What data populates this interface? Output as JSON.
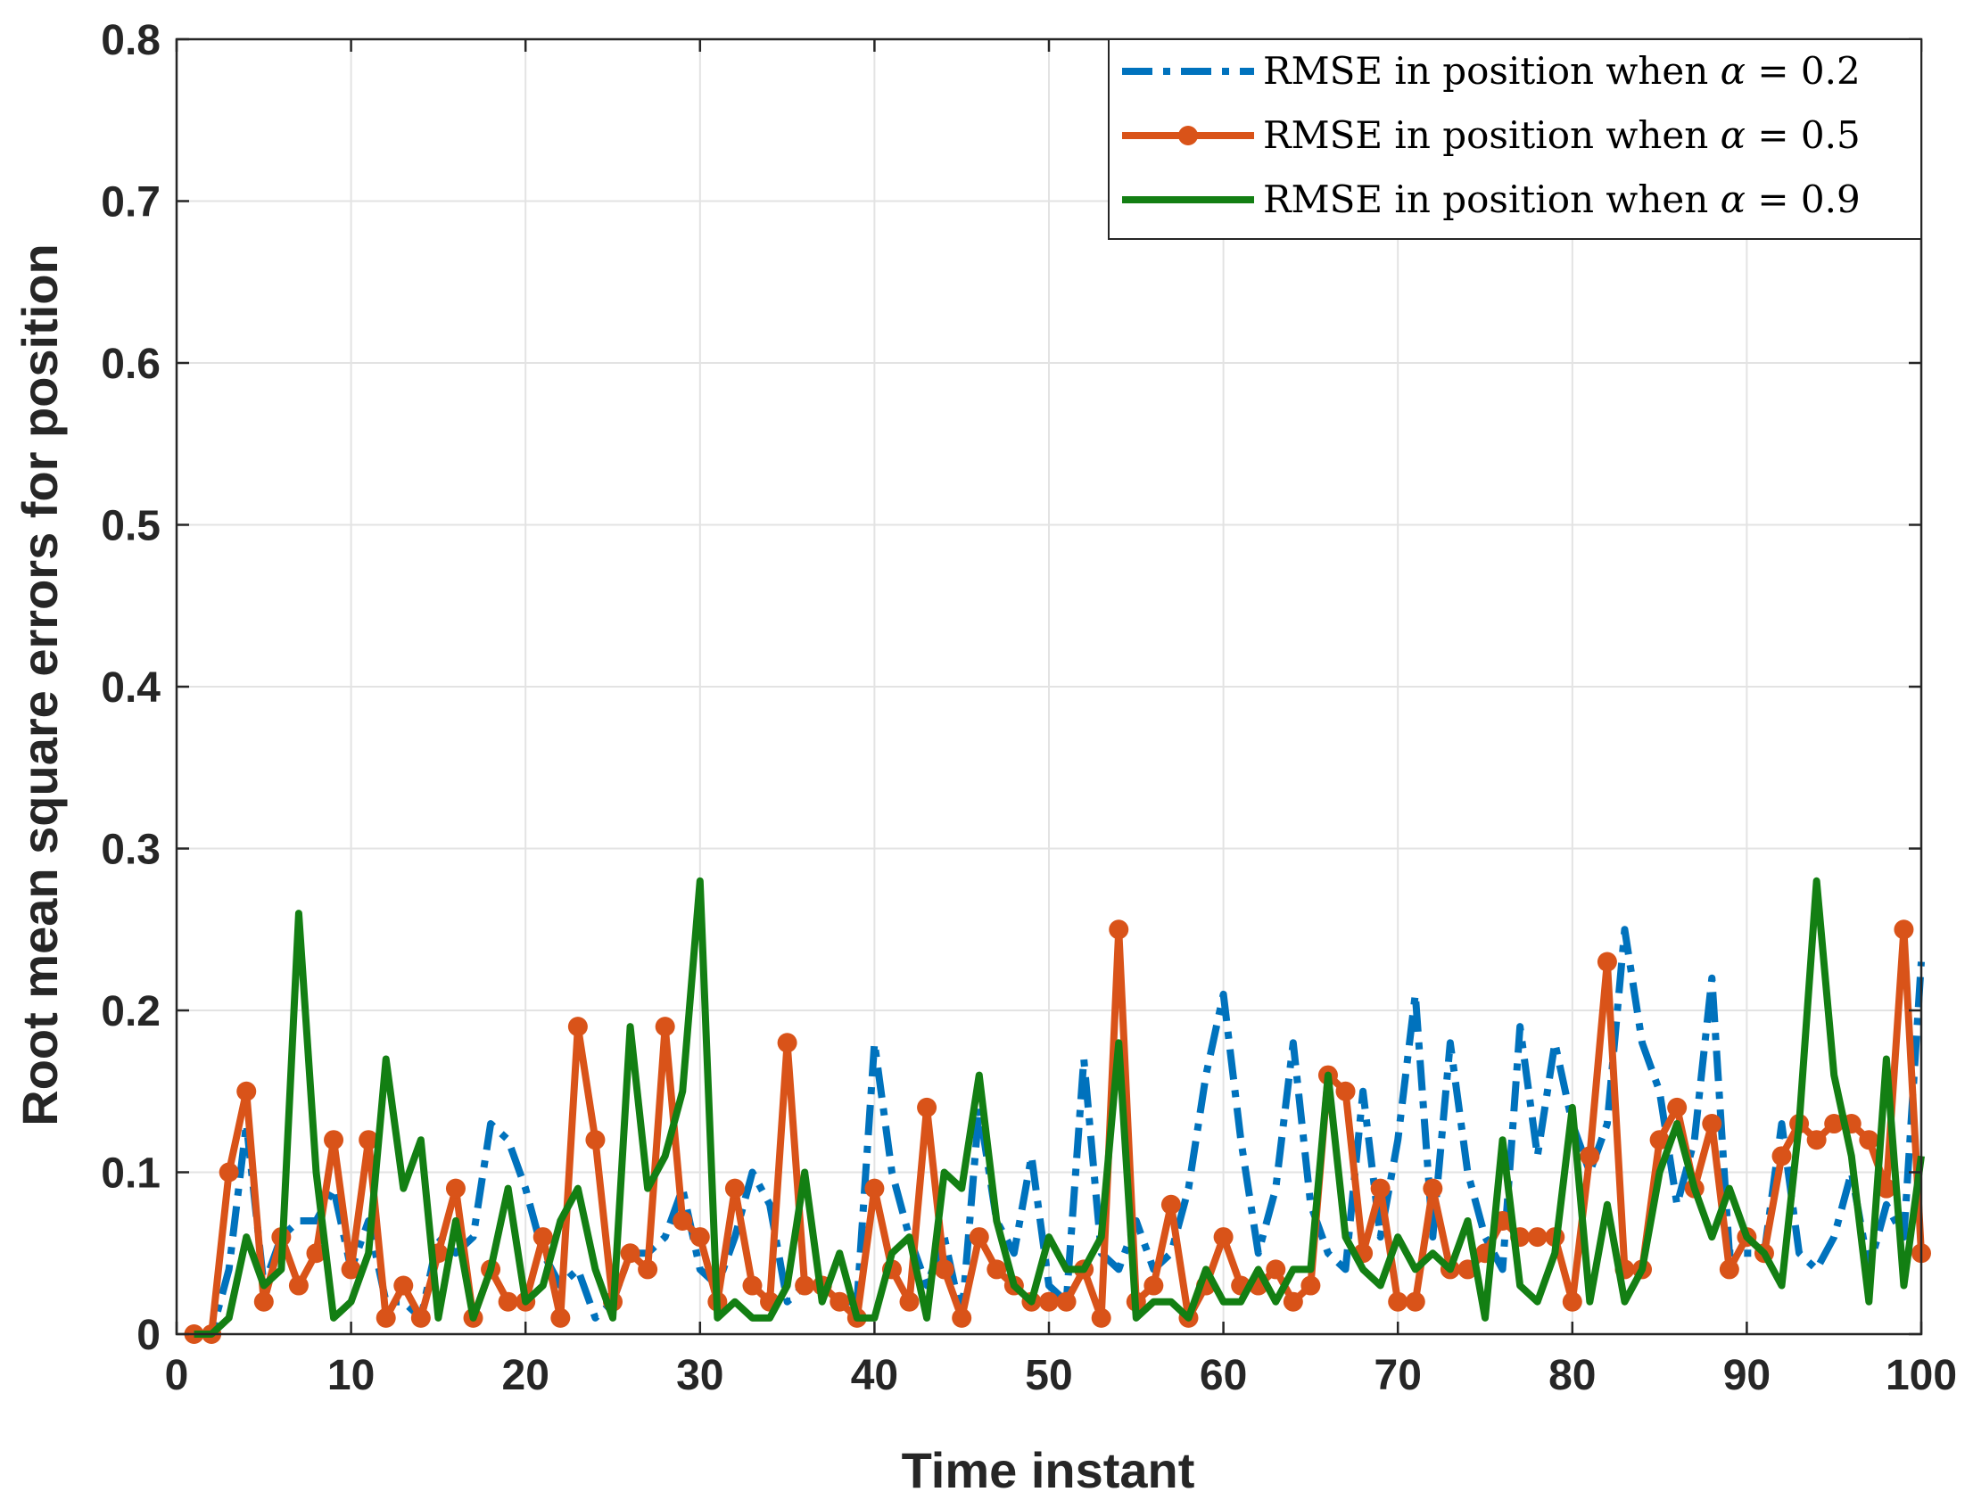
{
  "chart_data": {
    "type": "line",
    "xlabel": "Time instant",
    "ylabel": "Root mean square errors for position",
    "xlim": [
      0,
      100
    ],
    "ylim": [
      0,
      0.8
    ],
    "xticks": [
      0,
      10,
      20,
      30,
      40,
      50,
      60,
      70,
      80,
      90,
      100
    ],
    "yticks": [
      0,
      0.1,
      0.2,
      0.3,
      0.4,
      0.5,
      0.6,
      0.7,
      0.8
    ],
    "xtick_labels": [
      "0",
      "10",
      "20",
      "30",
      "40",
      "50",
      "60",
      "70",
      "80",
      "90",
      "100"
    ],
    "ytick_labels": [
      "0",
      "0.1",
      "0.2",
      "0.3",
      "0.4",
      "0.5",
      "0.6",
      "0.7",
      "0.8"
    ],
    "grid": true,
    "legend_position": "top-right",
    "series": [
      {
        "name": "RMSE in position when α = 0.2",
        "legend_prefix": "RMSE in position when ",
        "legend_symbol": "α",
        "legend_suffix": " = 0.2",
        "color": "#0072BD",
        "style": "dashdot",
        "marker": "none",
        "values": [
          0.0,
          0.0,
          0.04,
          0.13,
          0.03,
          0.06,
          0.07,
          0.07,
          0.09,
          0.04,
          0.07,
          0.02,
          0.02,
          0.01,
          0.06,
          0.05,
          0.06,
          0.13,
          0.12,
          0.09,
          0.05,
          0.03,
          0.04,
          0.01,
          0.02,
          0.05,
          0.05,
          0.06,
          0.09,
          0.04,
          0.03,
          0.06,
          0.1,
          0.08,
          0.02,
          0.03,
          0.03,
          0.02,
          0.02,
          0.18,
          0.1,
          0.06,
          0.03,
          0.06,
          0.01,
          0.14,
          0.07,
          0.05,
          0.11,
          0.03,
          0.02,
          0.17,
          0.05,
          0.04,
          0.07,
          0.04,
          0.05,
          0.09,
          0.16,
          0.21,
          0.12,
          0.05,
          0.09,
          0.18,
          0.08,
          0.05,
          0.04,
          0.15,
          0.06,
          0.12,
          0.21,
          0.06,
          0.18,
          0.1,
          0.06,
          0.04,
          0.19,
          0.11,
          0.18,
          0.13,
          0.1,
          0.13,
          0.25,
          0.18,
          0.15,
          0.08,
          0.12,
          0.22,
          0.05,
          0.05,
          0.05,
          0.13,
          0.05,
          0.04,
          0.06,
          0.1,
          0.04,
          0.08,
          0.06,
          0.23
        ]
      },
      {
        "name": "RMSE in position when α = 0.5",
        "legend_prefix": "RMSE in position when ",
        "legend_symbol": "α",
        "legend_suffix": " = 0.5",
        "color": "#D95319",
        "style": "solid",
        "marker": "circle",
        "values": [
          0.0,
          0.0,
          0.1,
          0.15,
          0.02,
          0.06,
          0.03,
          0.05,
          0.12,
          0.04,
          0.12,
          0.01,
          0.03,
          0.01,
          0.05,
          0.09,
          0.01,
          0.04,
          0.02,
          0.02,
          0.06,
          0.01,
          0.19,
          0.12,
          0.02,
          0.05,
          0.04,
          0.19,
          0.07,
          0.06,
          0.02,
          0.09,
          0.03,
          0.02,
          0.18,
          0.03,
          0.03,
          0.02,
          0.01,
          0.09,
          0.04,
          0.02,
          0.14,
          0.04,
          0.01,
          0.06,
          0.04,
          0.03,
          0.02,
          0.02,
          0.02,
          0.04,
          0.01,
          0.25,
          0.02,
          0.03,
          0.08,
          0.01,
          0.03,
          0.06,
          0.03,
          0.03,
          0.04,
          0.02,
          0.03,
          0.16,
          0.15,
          0.05,
          0.09,
          0.02,
          0.02,
          0.09,
          0.04,
          0.04,
          0.05,
          0.07,
          0.06,
          0.06,
          0.06,
          0.02,
          0.11,
          0.23,
          0.04,
          0.04,
          0.12,
          0.14,
          0.09,
          0.13,
          0.04,
          0.06,
          0.05,
          0.11,
          0.13,
          0.12,
          0.13,
          0.13,
          0.12,
          0.09,
          0.25,
          0.05
        ]
      },
      {
        "name": "RMSE in position when α = 0.9",
        "legend_prefix": "RMSE in position when ",
        "legend_symbol": "α",
        "legend_suffix": " = 0.9",
        "color": "#137F13",
        "style": "solid",
        "marker": "none",
        "values": [
          0.0,
          0.0,
          0.01,
          0.06,
          0.03,
          0.04,
          0.26,
          0.1,
          0.01,
          0.02,
          0.05,
          0.17,
          0.09,
          0.12,
          0.01,
          0.07,
          0.01,
          0.04,
          0.09,
          0.02,
          0.03,
          0.07,
          0.09,
          0.04,
          0.01,
          0.19,
          0.09,
          0.11,
          0.15,
          0.28,
          0.01,
          0.02,
          0.01,
          0.01,
          0.03,
          0.1,
          0.02,
          0.05,
          0.01,
          0.01,
          0.05,
          0.06,
          0.01,
          0.1,
          0.09,
          0.16,
          0.07,
          0.03,
          0.02,
          0.06,
          0.04,
          0.04,
          0.06,
          0.18,
          0.01,
          0.02,
          0.02,
          0.01,
          0.04,
          0.02,
          0.02,
          0.04,
          0.02,
          0.04,
          0.04,
          0.16,
          0.06,
          0.04,
          0.03,
          0.06,
          0.04,
          0.05,
          0.04,
          0.07,
          0.01,
          0.12,
          0.03,
          0.02,
          0.05,
          0.14,
          0.02,
          0.08,
          0.02,
          0.04,
          0.1,
          0.13,
          0.09,
          0.06,
          0.09,
          0.06,
          0.05,
          0.03,
          0.13,
          0.28,
          0.16,
          0.11,
          0.02,
          0.17,
          0.03,
          0.11
        ]
      }
    ]
  }
}
